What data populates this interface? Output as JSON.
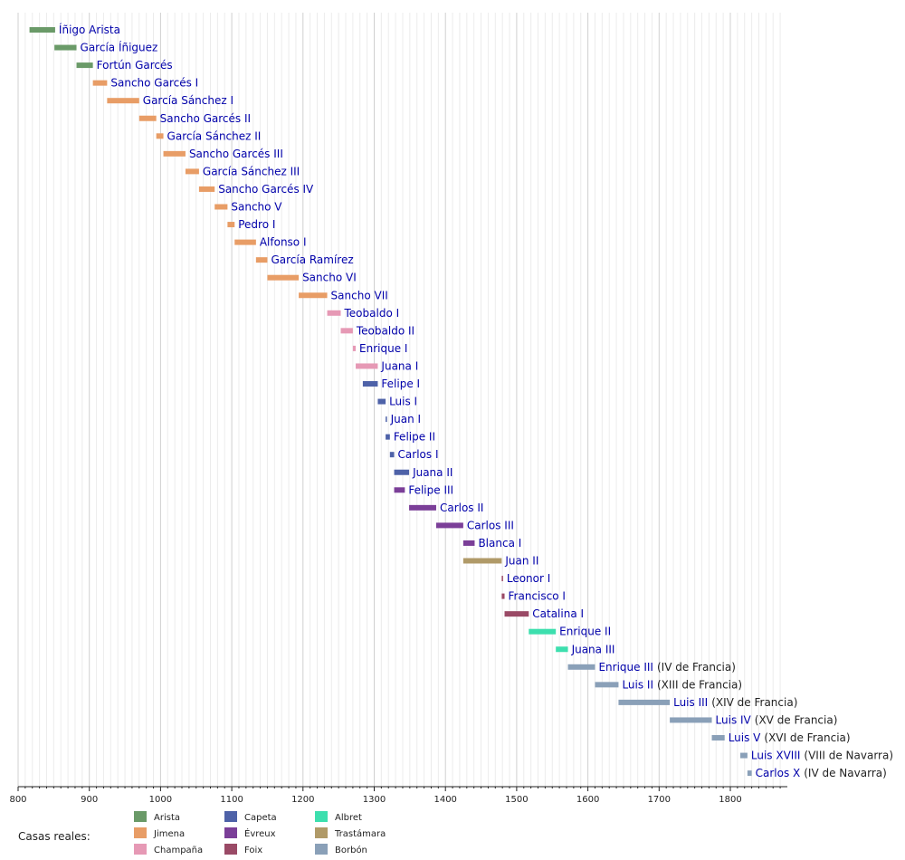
{
  "chart_data": {
    "type": "timeline",
    "x_range": [
      800,
      1880
    ],
    "x_ticks": [
      "800",
      "900",
      "1000",
      "1100",
      "1200",
      "1300",
      "1400",
      "1500",
      "1600",
      "1700",
      "1800"
    ],
    "grid": "vertical lines",
    "houses": [
      {
        "key": "arista",
        "label": "Arista",
        "color": "#6a9a68"
      },
      {
        "key": "jimena",
        "label": "Jimena",
        "color": "#e89d66"
      },
      {
        "key": "champana",
        "label": "Champaña",
        "color": "#e699b5"
      },
      {
        "key": "capeta",
        "label": "Capeta",
        "color": "#4e62a8"
      },
      {
        "key": "evreux",
        "label": "Évreux",
        "color": "#7b3f98"
      },
      {
        "key": "foix",
        "label": "Foix",
        "color": "#9a4a66"
      },
      {
        "key": "albret",
        "label": "Albret",
        "color": "#3ddfae"
      },
      {
        "key": "trastamara",
        "label": "Trastámara",
        "color": "#b09a68"
      },
      {
        "key": "borbon",
        "label": "Borbón",
        "color": "#8aa0b8"
      }
    ],
    "legend": {
      "title": "Casas reales:",
      "placement": "bottom-left"
    },
    "reigns": [
      {
        "name": "Íñigo Arista",
        "start": 816,
        "end": 852,
        "house": "arista"
      },
      {
        "name": "García Íñiguez",
        "start": 851,
        "end": 882,
        "house": "arista"
      },
      {
        "name": "Fortún Garcés",
        "start": 882,
        "end": 905,
        "house": "arista"
      },
      {
        "name": "Sancho Garcés I",
        "start": 905,
        "end": 925,
        "house": "jimena"
      },
      {
        "name": "García Sánchez I",
        "start": 925,
        "end": 970,
        "house": "jimena"
      },
      {
        "name": "Sancho Garcés II",
        "start": 970,
        "end": 994,
        "house": "jimena"
      },
      {
        "name": "García Sánchez II",
        "start": 994,
        "end": 1004,
        "house": "jimena"
      },
      {
        "name": "Sancho Garcés III",
        "start": 1004,
        "end": 1035,
        "house": "jimena"
      },
      {
        "name": "García Sánchez III",
        "start": 1035,
        "end": 1054,
        "house": "jimena"
      },
      {
        "name": "Sancho Garcés IV",
        "start": 1054,
        "end": 1076,
        "house": "jimena"
      },
      {
        "name": "Sancho V",
        "start": 1076,
        "end": 1094,
        "house": "jimena"
      },
      {
        "name": "Pedro I",
        "start": 1094,
        "end": 1104,
        "house": "jimena"
      },
      {
        "name": "Alfonso I",
        "start": 1104,
        "end": 1134,
        "house": "jimena"
      },
      {
        "name": "García Ramírez",
        "start": 1134,
        "end": 1150,
        "house": "jimena"
      },
      {
        "name": "Sancho VI",
        "start": 1150,
        "end": 1194,
        "house": "jimena"
      },
      {
        "name": "Sancho VII",
        "start": 1194,
        "end": 1234,
        "house": "jimena"
      },
      {
        "name": "Teobaldo I",
        "start": 1234,
        "end": 1253,
        "house": "champana"
      },
      {
        "name": "Teobaldo II",
        "start": 1253,
        "end": 1270,
        "house": "champana"
      },
      {
        "name": "Enrique I",
        "start": 1270,
        "end": 1274,
        "house": "champana"
      },
      {
        "name": "Juana I",
        "start": 1274,
        "end": 1305,
        "house": "champana"
      },
      {
        "name": "Felipe I",
        "start": 1284,
        "end": 1305,
        "house": "capeta"
      },
      {
        "name": "Luis I",
        "start": 1305,
        "end": 1316,
        "house": "capeta"
      },
      {
        "name": "Juan I",
        "start": 1316,
        "end": 1316.5,
        "house": "capeta"
      },
      {
        "name": "Felipe II",
        "start": 1316,
        "end": 1322,
        "house": "capeta"
      },
      {
        "name": "Carlos I",
        "start": 1322,
        "end": 1328,
        "house": "capeta"
      },
      {
        "name": "Juana II",
        "start": 1328,
        "end": 1349,
        "house": "capeta"
      },
      {
        "name": "Felipe III",
        "start": 1328,
        "end": 1343,
        "house": "evreux"
      },
      {
        "name": "Carlos II",
        "start": 1349,
        "end": 1387,
        "house": "evreux"
      },
      {
        "name": "Carlos III",
        "start": 1387,
        "end": 1425,
        "house": "evreux"
      },
      {
        "name": "Blanca I",
        "start": 1425,
        "end": 1441,
        "house": "evreux"
      },
      {
        "name": "Juan II",
        "start": 1425,
        "end": 1479,
        "house": "trastamara"
      },
      {
        "name": "Leonor I",
        "start": 1479,
        "end": 1479.5,
        "house": "foix"
      },
      {
        "name": "Francisco I",
        "start": 1479,
        "end": 1483,
        "house": "foix"
      },
      {
        "name": "Catalina I",
        "start": 1483,
        "end": 1517,
        "house": "foix"
      },
      {
        "name": "Enrique II",
        "start": 1517,
        "end": 1555,
        "house": "albret"
      },
      {
        "name": "Juana III",
        "start": 1555,
        "end": 1572,
        "house": "albret"
      },
      {
        "name": "Enrique III",
        "note": "(IV de Francia)",
        "start": 1572,
        "end": 1610,
        "house": "borbon"
      },
      {
        "name": "Luis II",
        "note": "(XIII de Francia)",
        "start": 1610,
        "end": 1643,
        "house": "borbon"
      },
      {
        "name": "Luis III",
        "note": "(XIV de Francia)",
        "start": 1643,
        "end": 1715,
        "house": "borbon"
      },
      {
        "name": "Luis IV",
        "note": "(XV de Francia)",
        "start": 1715,
        "end": 1774,
        "house": "borbon"
      },
      {
        "name": "Luis V",
        "note": "(XVI de Francia)",
        "start": 1774,
        "end": 1792,
        "house": "borbon"
      },
      {
        "name": "Luis XVIII",
        "note": "(VIII de Navarra)",
        "start": 1814,
        "end": 1824,
        "house": "borbon"
      },
      {
        "name": "Carlos X",
        "note": "(IV de Navarra)",
        "start": 1824,
        "end": 1830,
        "house": "borbon"
      }
    ]
  }
}
